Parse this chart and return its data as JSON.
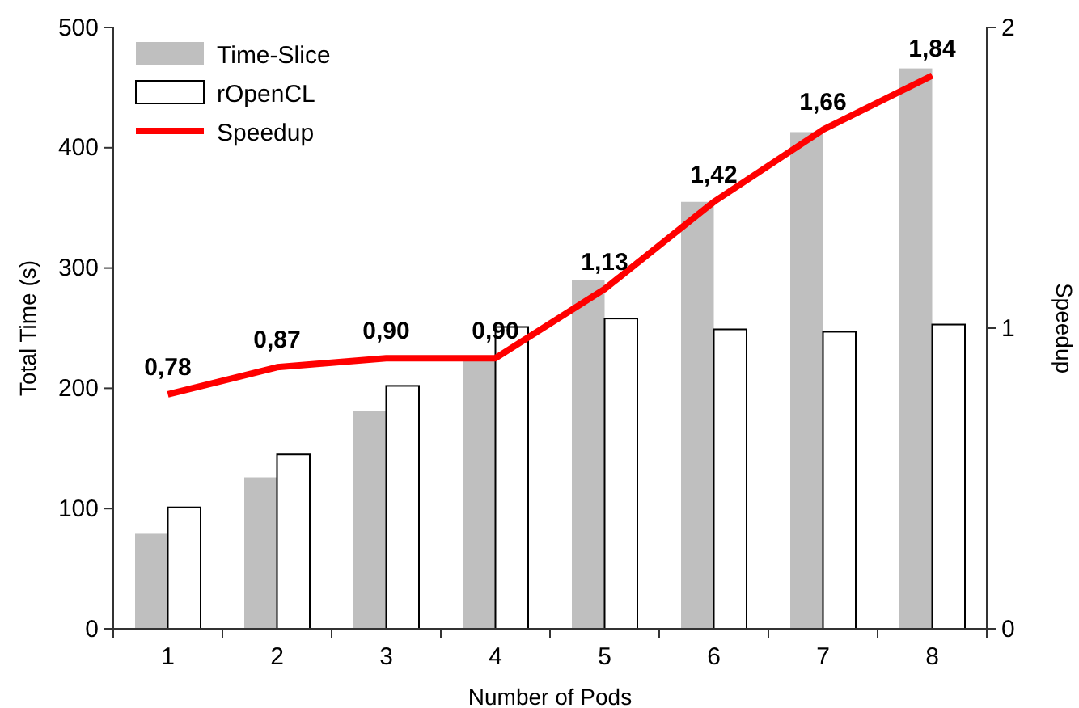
{
  "chart_data": {
    "type": "bar",
    "xlabel": "Number of Pods",
    "ylabel": "Total Time (s)",
    "y2label": "Speedup",
    "categories": [
      "1",
      "2",
      "3",
      "4",
      "5",
      "6",
      "7",
      "8"
    ],
    "series": [
      {
        "name": "Time-Slice",
        "color": "#bfbfbf",
        "values": [
          79,
          126,
          181,
          224,
          290,
          355,
          413,
          466
        ]
      },
      {
        "name": "rOpenCL",
        "color": "#ffffff",
        "values": [
          101,
          145,
          202,
          251,
          258,
          249,
          247,
          253
        ]
      },
      {
        "name": "Speedup",
        "type": "line",
        "axis": "y2",
        "color": "#ff0000",
        "values": [
          0.78,
          0.87,
          0.9,
          0.9,
          1.13,
          1.42,
          1.66,
          1.84
        ],
        "value_labels": [
          "0,78",
          "0,87",
          "0,90",
          "0,90",
          "1,13",
          "1,42",
          "1,66",
          "1,84"
        ]
      }
    ],
    "ylim": [
      0,
      500
    ],
    "yticks": [
      0,
      100,
      200,
      300,
      400,
      500
    ],
    "y2lim": [
      0,
      2
    ],
    "y2ticks": [
      0,
      1,
      2
    ],
    "legend": "top left",
    "grid": false
  }
}
